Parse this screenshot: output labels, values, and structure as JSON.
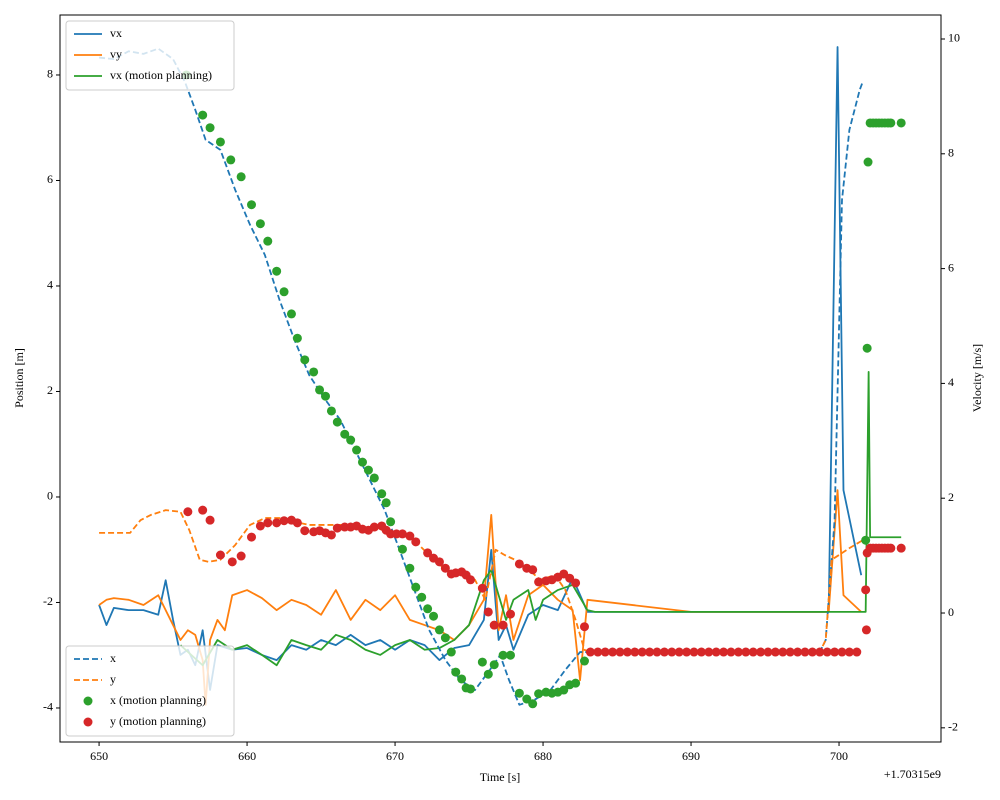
{
  "chart_data": {
    "type": "line",
    "xlabel": "Time [s]",
    "ylabel": "Position [m]",
    "y2label": "Velocity [m/s]",
    "x_offset_label": "+1.70315e9",
    "xlim": [
      647.36,
      706.89
    ],
    "xticks": [
      650,
      660,
      670,
      680,
      690,
      700
    ],
    "ylim": [
      -4.645,
      9.137
    ],
    "yticks": [
      -4,
      -2,
      0,
      2,
      4,
      6,
      8
    ],
    "y2lim": [
      -2.247,
      10.418
    ],
    "y2ticks": [
      -2,
      0,
      2,
      4,
      6,
      8,
      10
    ],
    "grid": false,
    "series": [
      {
        "name": "vx",
        "color": "#1f77b4",
        "axis": "y2",
        "linestyle": "solid",
        "marker": "none",
        "legend": "upper left",
        "x": [
          650,
          650.5,
          651,
          652,
          653,
          654,
          654.5,
          655,
          655.5,
          656,
          656.5,
          657,
          657.5,
          658,
          659,
          660,
          661,
          662,
          663,
          664,
          665,
          666,
          667,
          668,
          669,
          670,
          671,
          672,
          673,
          674,
          675,
          676,
          676.5,
          677,
          677.5,
          678,
          679,
          680,
          681,
          682,
          683,
          690,
          699.3,
          699.9,
          700.3,
          701.5
        ],
        "values": [
          0.14,
          -0.21,
          0.09,
          0.05,
          0.05,
          -0.03,
          0.57,
          -0.12,
          -0.73,
          -0.64,
          -0.91,
          -0.3,
          -1.34,
          -0.56,
          -0.64,
          -0.61,
          -0.73,
          -0.82,
          -0.56,
          -0.64,
          -0.47,
          -0.56,
          -0.38,
          -0.56,
          -0.47,
          -0.64,
          -0.47,
          -0.56,
          -0.82,
          -0.61,
          -0.56,
          -0.12,
          1.1,
          -0.47,
          -0.21,
          -0.64,
          -0.03,
          0.14,
          0.05,
          0.61,
          0.02,
          0.02,
          0.02,
          9.86,
          2.14,
          0.66
        ]
      },
      {
        "name": "vy",
        "color": "#ff7f0e",
        "axis": "y2",
        "linestyle": "solid",
        "marker": "none",
        "legend": "upper left",
        "x": [
          650,
          650.5,
          651,
          652,
          653,
          654,
          655,
          655.5,
          656,
          656.5,
          657,
          657.2,
          657.5,
          658,
          658.5,
          659,
          660,
          661,
          662,
          663,
          664,
          665,
          666,
          667,
          668,
          669,
          670,
          671,
          672,
          673,
          674,
          675,
          676,
          676.5,
          677,
          677.5,
          678,
          679,
          680,
          681,
          682,
          682.5,
          683,
          690,
          699.3,
          699.9,
          700.3,
          701.5
        ],
        "values": [
          0.14,
          0.23,
          0.26,
          0.23,
          0.14,
          0.31,
          -0.21,
          -0.47,
          -0.3,
          -0.38,
          -0.82,
          -1.6,
          -0.47,
          -0.12,
          -0.3,
          0.31,
          0.4,
          0.26,
          0.05,
          0.23,
          0.14,
          -0.03,
          0.4,
          -0.12,
          0.23,
          0.05,
          0.31,
          -0.12,
          -0.21,
          -0.3,
          -0.47,
          -0.21,
          0.23,
          1.71,
          -0.3,
          0.31,
          -0.47,
          0.31,
          0.49,
          0.23,
          0.05,
          -1.17,
          0.23,
          0.02,
          0.02,
          2.14,
          0.31,
          0.02
        ]
      },
      {
        "name": "vx (motion planning)",
        "color": "#2ca02c",
        "axis": "y2",
        "linestyle": "solid",
        "marker": "none",
        "legend": "upper left",
        "x": [
          655.5,
          657,
          658,
          659,
          660,
          661,
          662,
          663,
          664,
          665,
          666,
          667,
          668,
          669,
          670,
          671,
          672,
          673,
          674,
          675,
          676,
          676.5,
          677,
          677.5,
          678,
          679,
          679.5,
          680,
          681,
          682,
          683,
          683.5,
          701.8,
          702.0,
          702.1,
          704.2
        ],
        "values": [
          -0.56,
          -0.91,
          -0.47,
          -0.64,
          -0.56,
          -0.73,
          -0.91,
          -0.47,
          -0.56,
          -0.64,
          -0.38,
          -0.47,
          -0.64,
          -0.73,
          -0.56,
          -0.47,
          -0.64,
          -0.61,
          -0.47,
          -0.21,
          0.57,
          0.75,
          0.31,
          -0.12,
          0.23,
          0.4,
          -0.12,
          0.23,
          0.4,
          0.49,
          0.05,
          0.02,
          0.02,
          4.2,
          1.32,
          1.32
        ]
      },
      {
        "name": "x",
        "color": "#1f77b4",
        "axis": "y",
        "linestyle": "dashed",
        "marker": "none",
        "legend": "lower left",
        "x": [
          650,
          651,
          652,
          653,
          654,
          655,
          655.8,
          656.5,
          657.2,
          658.2,
          659.2,
          660.2,
          661.2,
          662.2,
          663.2,
          664.2,
          665.3,
          666.3,
          667.3,
          668.3,
          669.3,
          670.3,
          671.3,
          672.3,
          673.4,
          674.4,
          675.4,
          676.4,
          677.1,
          677.7,
          678.4,
          679.4,
          680.5,
          681.5,
          682.5,
          683.5,
          690,
          698.7,
          699.1,
          699.7,
          700.2,
          700.7,
          701.4,
          701.6
        ],
        "values": [
          8.33,
          8.3,
          8.45,
          8.4,
          8.5,
          8.3,
          7.87,
          7.34,
          6.77,
          6.58,
          5.82,
          5.16,
          4.59,
          3.73,
          2.98,
          2.31,
          1.84,
          1.46,
          0.89,
          0.32,
          -0.25,
          -1.0,
          -1.76,
          -2.52,
          -3.09,
          -3.47,
          -3.66,
          -3.28,
          -3.0,
          -3.47,
          -3.94,
          -3.85,
          -3.66,
          -3.28,
          -2.94,
          -2.94,
          -2.94,
          -2.94,
          -2.71,
          -0.44,
          5.63,
          6.96,
          7.72,
          7.87
        ]
      },
      {
        "name": "y",
        "color": "#ff7f0e",
        "axis": "y",
        "linestyle": "dashed",
        "marker": "none",
        "legend": "lower left",
        "x": [
          650,
          652.1,
          652.8,
          653.5,
          654.5,
          655.5,
          656.1,
          656.8,
          657.4,
          658.2,
          659.2,
          660.2,
          661.2,
          662.2,
          663.2,
          664.2,
          665.3,
          666.3,
          667.3,
          668.3,
          669.3,
          670.3,
          671.3,
          672.3,
          673.4,
          674.4,
          675.4,
          676.1,
          676.8,
          677.4,
          678.1,
          678.7,
          679.8,
          680.8,
          681.5,
          682.2,
          682.8,
          683.5,
          698.7,
          699.1,
          699.5,
          700.0,
          700.7,
          701.6
        ],
        "values": [
          -0.68,
          -0.68,
          -0.44,
          -0.34,
          -0.25,
          -0.28,
          -0.63,
          -1.19,
          -1.23,
          -1.19,
          -0.91,
          -0.53,
          -0.4,
          -0.4,
          -0.47,
          -0.53,
          -0.53,
          -0.53,
          -0.53,
          -0.59,
          -0.63,
          -0.68,
          -0.82,
          -1.1,
          -1.38,
          -1.48,
          -1.57,
          -1.95,
          -1.0,
          -1.1,
          -1.19,
          -1.29,
          -1.57,
          -1.48,
          -1.76,
          -2.33,
          -2.9,
          -2.94,
          -2.94,
          -2.71,
          -1.19,
          -1.1,
          -0.97,
          -0.82
        ]
      },
      {
        "name": "x (motion planning)",
        "color": "#2ca02c",
        "axis": "y",
        "linestyle": "none",
        "marker": "o",
        "legend": "lower left",
        "x": [
          655.9,
          657.0,
          657.5,
          658.2,
          658.9,
          659.6,
          660.3,
          660.9,
          661.4,
          662.0,
          662.5,
          663.0,
          663.4,
          663.9,
          664.5,
          664.9,
          665.3,
          665.7,
          666.1,
          666.6,
          667.0,
          667.4,
          667.8,
          668.2,
          668.6,
          669.1,
          669.4,
          669.7,
          670.5,
          671.0,
          671.4,
          671.8,
          672.2,
          672.6,
          673.0,
          673.4,
          673.8,
          674.1,
          674.5,
          674.8,
          675.1,
          675.9,
          676.3,
          676.7,
          677.3,
          677.8,
          678.4,
          678.9,
          679.3,
          679.7,
          680.2,
          680.6,
          681.0,
          681.4,
          681.8,
          682.2,
          682.8,
          701.8,
          701.9,
          701.96,
          702.1,
          702.3,
          702.5,
          702.7,
          702.9,
          703.1,
          703.3,
          703.5,
          704.2
        ],
        "values": [
          8.0,
          7.24,
          7.0,
          6.73,
          6.39,
          6.07,
          5.54,
          5.18,
          4.85,
          4.28,
          3.89,
          3.47,
          3.01,
          2.6,
          2.37,
          2.03,
          1.91,
          1.63,
          1.42,
          1.19,
          1.08,
          0.89,
          0.66,
          0.51,
          0.36,
          0.06,
          -0.11,
          -0.47,
          -0.99,
          -1.35,
          -1.71,
          -1.9,
          -2.12,
          -2.26,
          -2.52,
          -2.67,
          -2.94,
          -3.32,
          -3.45,
          -3.62,
          -3.64,
          -3.13,
          -3.36,
          -3.18,
          -3.0,
          -3.0,
          -3.72,
          -3.83,
          -3.92,
          -3.73,
          -3.7,
          -3.72,
          -3.7,
          -3.66,
          -3.56,
          -3.53,
          -3.11,
          -0.82,
          2.82,
          6.35,
          7.09,
          7.09,
          7.09,
          7.09,
          7.09,
          7.09,
          7.09,
          7.09,
          7.09
        ]
      },
      {
        "name": "y (motion planning)",
        "color": "#d62728",
        "axis": "y",
        "linestyle": "none",
        "marker": "o",
        "legend": "lower left",
        "x": [
          656.0,
          657.0,
          657.5,
          658.2,
          659.0,
          659.6,
          660.3,
          660.9,
          661.4,
          662.0,
          662.5,
          663.0,
          663.4,
          663.9,
          664.5,
          664.9,
          665.3,
          665.7,
          666.1,
          666.6,
          667.0,
          667.4,
          667.8,
          668.2,
          668.6,
          669.1,
          669.4,
          669.7,
          670.1,
          670.5,
          671.0,
          671.4,
          672.2,
          672.6,
          673.0,
          673.4,
          673.8,
          674.1,
          674.5,
          674.8,
          675.1,
          675.9,
          676.3,
          676.7,
          677.3,
          677.8,
          678.4,
          678.9,
          679.3,
          679.7,
          680.2,
          680.6,
          681.0,
          681.4,
          681.8,
          682.2,
          682.8,
          683.2,
          683.7,
          684.2,
          684.7,
          685.2,
          685.7,
          686.2,
          686.7,
          687.2,
          687.7,
          688.2,
          688.7,
          689.2,
          689.7,
          690.2,
          690.7,
          691.2,
          691.7,
          692.2,
          692.7,
          693.2,
          693.7,
          694.2,
          694.7,
          695.2,
          695.7,
          696.2,
          696.7,
          697.2,
          697.7,
          698.2,
          698.7,
          699.2,
          699.7,
          700.2,
          700.7,
          701.2,
          701.8,
          701.85,
          701.9,
          702.1,
          702.3,
          702.5,
          702.7,
          702.9,
          703.1,
          703.3,
          703.5,
          704.2
        ],
        "values": [
          -0.28,
          -0.25,
          -0.44,
          -1.1,
          -1.23,
          -1.12,
          -0.76,
          -0.55,
          -0.49,
          -0.49,
          -0.45,
          -0.44,
          -0.49,
          -0.64,
          -0.66,
          -0.64,
          -0.68,
          -0.72,
          -0.59,
          -0.57,
          -0.57,
          -0.55,
          -0.61,
          -0.63,
          -0.57,
          -0.55,
          -0.63,
          -0.7,
          -0.7,
          -0.7,
          -0.74,
          -0.85,
          -1.06,
          -1.16,
          -1.23,
          -1.35,
          -1.46,
          -1.44,
          -1.42,
          -1.48,
          -1.57,
          -1.73,
          -2.18,
          -2.43,
          -2.43,
          -2.22,
          -1.27,
          -1.35,
          -1.38,
          -1.61,
          -1.59,
          -1.57,
          -1.52,
          -1.46,
          -1.54,
          -1.63,
          -2.46,
          -2.94,
          -2.94,
          -2.94,
          -2.94,
          -2.94,
          -2.94,
          -2.94,
          -2.94,
          -2.94,
          -2.94,
          -2.94,
          -2.94,
          -2.94,
          -2.94,
          -2.94,
          -2.94,
          -2.94,
          -2.94,
          -2.94,
          -2.94,
          -2.94,
          -2.94,
          -2.94,
          -2.94,
          -2.94,
          -2.94,
          -2.94,
          -2.94,
          -2.94,
          -2.94,
          -2.94,
          -2.94,
          -2.94,
          -2.94,
          -2.94,
          -2.94,
          -2.94,
          -1.76,
          -2.52,
          -1.06,
          -0.97,
          -0.97,
          -0.97,
          -0.97,
          -0.97,
          -0.97,
          -0.97,
          -0.97,
          -0.97
        ]
      }
    ]
  }
}
